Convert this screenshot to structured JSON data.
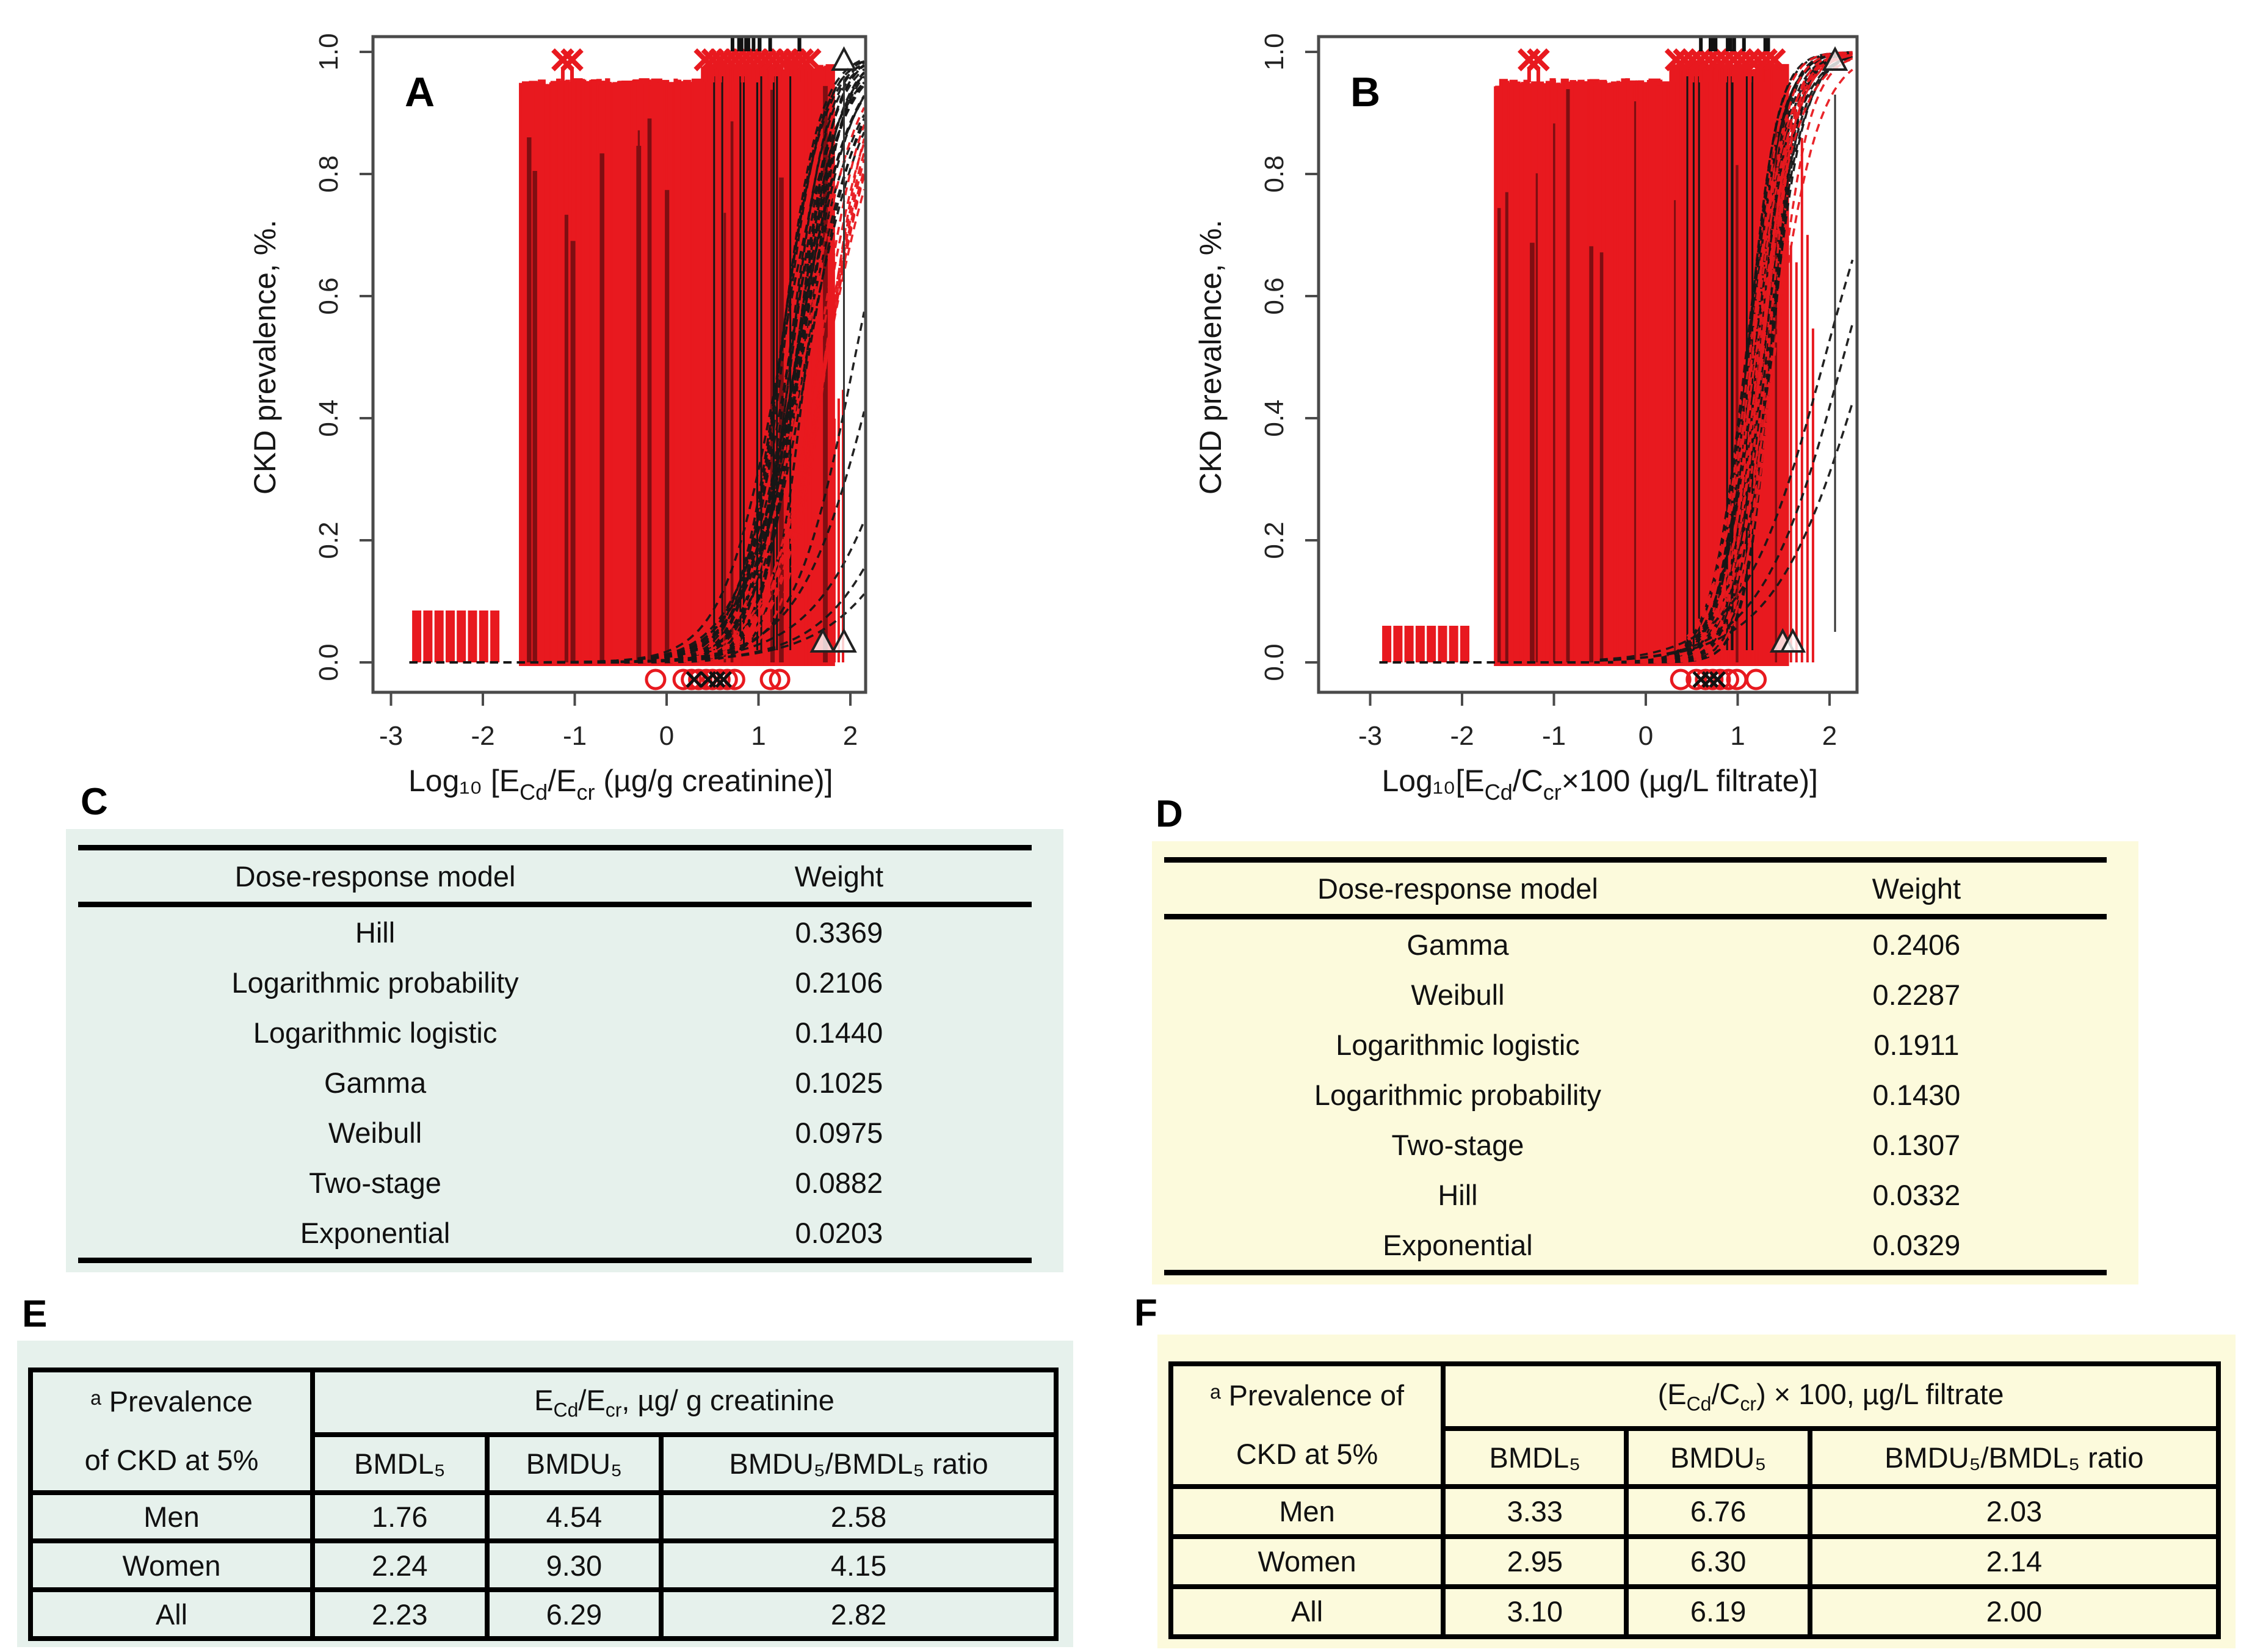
{
  "letters": {
    "c": "C",
    "d": "D",
    "e": "E",
    "f": "F"
  },
  "colors": {
    "red": "#e8191f",
    "dark_red": "#7f0e12",
    "green_bg": "#e6f1ec",
    "yellow_bg": "#fcfadc",
    "frame": "#4a4a4a",
    "ink": "#161616"
  },
  "chart_data": [
    {
      "type": "scatter",
      "panel": "A",
      "ylabel": "CKD prevalence, %.",
      "xlabel": "Log10 [ECd/Ecr (µg/g creatinine)]",
      "xlabel_segments": [
        {
          "t": "Log₁₀ [E"
        },
        {
          "t": "Cd",
          "sub": true
        },
        {
          "t": "/E"
        },
        {
          "t": "cr",
          "sub": true
        },
        {
          "t": " (µg/g creatinine)]"
        }
      ],
      "xticks": [
        "-3",
        "-2",
        "-1",
        "0",
        "1",
        "2"
      ],
      "yticks": [
        "0.0",
        "0.2",
        "0.4",
        "0.6",
        "0.8",
        "1.0"
      ],
      "xlim": [
        -3.2,
        2.2
      ],
      "ylim": [
        -0.05,
        1.03
      ],
      "grid": false,
      "legend": "none",
      "layout": {
        "frame": {
          "l": 311,
          "r": 1118,
          "t": 50,
          "b": 1124
        },
        "x0": 792,
        "xu": 150.5,
        "y0": 1075,
        "yu": 1000,
        "seed": 42
      },
      "ci_block": {
        "from": -1.55,
        "to": 1.78,
        "n": 170,
        "top": 0.95,
        "top_right": 0.975,
        "right_from": 0.42,
        "dark": 14
      },
      "black_lines": {
        "from": 0.45,
        "to": 1.35,
        "n": 10,
        "top": 0.96
      },
      "left_bars": {
        "from": -2.72,
        "to": -1.87,
        "n": 8,
        "top": 0.085
      },
      "sparse": {
        "from": 1.78,
        "to": 1.92,
        "n": 4,
        "top": 0.55
      },
      "curves": {
        "n": 24,
        "from": -2.8,
        "x50": [
          1.22,
          1.55
        ],
        "k": [
          3.0,
          5.5
        ]
      },
      "red_curves": {
        "n": 10,
        "from": -0.4,
        "x50": [
          1.45,
          1.75
        ],
        "k": [
          3.0,
          4.6
        ]
      },
      "shallow": [
        {
          "x50": 2.05,
          "k": 3.0
        },
        {
          "x50": 2.3,
          "k": 2.4
        },
        {
          "x50": 2.75,
          "k": 2.0
        },
        {
          "x50": 3.0,
          "k": 2.0
        },
        {
          "x50": 3.3,
          "k": 1.8
        }
      ],
      "top_x": {
        "singles": [
          -1.13,
          -1.03
        ],
        "from": 0.42,
        "to": 1.56,
        "n": 15
      },
      "top_dashes": {
        "from": 0.5,
        "to": 1.5,
        "n": 12
      },
      "circles": {
        "v": -0.028,
        "xs": [
          -0.12,
          0.18,
          0.27,
          0.35,
          0.43,
          0.5,
          0.58,
          0.66,
          0.74,
          1.13,
          1.23
        ]
      },
      "circle_x": [
        0.3,
        0.45,
        0.55,
        0.62
      ],
      "triangles": [
        {
          "x": 1.7,
          "v": 0.032
        },
        {
          "x": 1.93,
          "v": 0.032
        },
        {
          "x": 1.93,
          "v": 0.985
        }
      ],
      "vlines": [
        {
          "x": 1.93,
          "v0": 0.05,
          "v1": 0.955
        }
      ]
    },
    {
      "type": "scatter",
      "panel": "B",
      "ylabel": "CKD prevalence, %.",
      "xlabel": "Log10[ECd/Ccr×100 (µg/L filtrate)]",
      "xlabel_segments": [
        {
          "t": "Log₁₀[E"
        },
        {
          "t": "Cd",
          "sub": true
        },
        {
          "t": "/C"
        },
        {
          "t": "cr",
          "sub": true
        },
        {
          "t": "×100 (µg/L filtrate)]"
        }
      ],
      "xticks": [
        "-3",
        "-2",
        "-1",
        "0",
        "1",
        "2"
      ],
      "yticks": [
        "0.0",
        "0.2",
        "0.4",
        "0.6",
        "0.8",
        "1.0"
      ],
      "xlim": [
        -3.5,
        2.3
      ],
      "ylim": [
        -0.05,
        1.03
      ],
      "grid": false,
      "legend": "none",
      "layout": {
        "frame": {
          "l": 310,
          "r": 1192,
          "t": 50,
          "b": 1124
        },
        "x0": 846,
        "xu": 150.5,
        "y0": 1075,
        "yu": 1000,
        "seed": 77
      },
      "ci_block": {
        "from": -1.6,
        "to": 1.5,
        "n": 165,
        "top": 0.95,
        "top_right": 0.975,
        "right_from": 0.3,
        "dark": 12
      },
      "black_lines": {
        "from": 0.4,
        "to": 1.3,
        "n": 8,
        "top": 0.96
      },
      "left_bars": {
        "from": -2.82,
        "to": -1.97,
        "n": 8,
        "top": 0.06
      },
      "sparse": {
        "from": 1.52,
        "to": 1.82,
        "n": 6,
        "top": 0.88
      },
      "curves": {
        "n": 18,
        "from": -2.9,
        "x50": [
          1.08,
          1.38
        ],
        "k": [
          4.0,
          7.0
        ]
      },
      "red_curves": {
        "n": 12,
        "from": -0.5,
        "x50": [
          1.12,
          1.45
        ],
        "k": [
          4.0,
          7.0
        ]
      },
      "shallow": [
        {
          "x50": 1.95,
          "k": 2.2
        },
        {
          "x50": 2.15,
          "k": 2.2
        },
        {
          "x50": 2.4,
          "k": 2.0
        }
      ],
      "top_x": {
        "singles": [
          -1.27,
          -1.17
        ],
        "from": 0.33,
        "to": 1.4,
        "n": 13
      },
      "top_dashes": {
        "from": 0.4,
        "to": 1.35,
        "n": 10
      },
      "circles": {
        "v": -0.028,
        "xs": [
          0.38,
          0.55,
          0.65,
          0.73,
          0.81,
          0.9,
          0.99,
          1.2
        ]
      },
      "circle_x": [
        0.6,
        0.7,
        0.78
      ],
      "triangles": [
        {
          "x": 1.49,
          "v": 0.032
        },
        {
          "x": 1.6,
          "v": 0.032
        },
        {
          "x": 2.06,
          "v": 0.985
        }
      ],
      "vlines": [
        {
          "x": 2.06,
          "v0": 0.05,
          "v1": 0.93
        }
      ]
    }
  ],
  "table_c": {
    "col_model": "Dose-response model",
    "col_weight": "Weight",
    "rows": [
      {
        "model": "Hill",
        "weight": "0.3369"
      },
      {
        "model": "Logarithmic probability",
        "weight": "0.2106"
      },
      {
        "model": "Logarithmic logistic",
        "weight": "0.1440"
      },
      {
        "model": "Gamma",
        "weight": "0.1025"
      },
      {
        "model": "Weibull",
        "weight": "0.0975"
      },
      {
        "model": "Two-stage",
        "weight": "0.0882"
      },
      {
        "model": "Exponential",
        "weight": "0.0203"
      }
    ]
  },
  "table_d": {
    "col_model": "Dose-response model",
    "col_weight": "Weight",
    "rows": [
      {
        "model": "Gamma",
        "weight": "0.2406"
      },
      {
        "model": "Weibull",
        "weight": "0.2287"
      },
      {
        "model": "Logarithmic logistic",
        "weight": "0.1911"
      },
      {
        "model": "Logarithmic probability",
        "weight": "0.1430"
      },
      {
        "model": "Two-stage",
        "weight": "0.1307"
      },
      {
        "model": "Hill",
        "weight": "0.0332"
      },
      {
        "model": "Exponential",
        "weight": "0.0329"
      }
    ]
  },
  "table_e": {
    "corner_line1": "ᵃ Prevalence",
    "corner_line2": "of CKD at 5%",
    "span_header": "ECd/Ecr, µg/ g creatinine",
    "span_segments": [
      {
        "t": "E"
      },
      {
        "t": "Cd",
        "sub": true
      },
      {
        "t": "/E"
      },
      {
        "t": "cr",
        "sub": true
      },
      {
        "t": ", µg/ g creatinine"
      }
    ],
    "col_headers": [
      "BMDL₅",
      "BMDU₅",
      "BMDU₅/BMDL₅ ratio"
    ],
    "rows": [
      {
        "label": "Men",
        "bmdl": "1.76",
        "bmdu": "4.54",
        "ratio": "2.58"
      },
      {
        "label": "Women",
        "bmdl": "2.24",
        "bmdu": "9.30",
        "ratio": "4.15"
      },
      {
        "label": "All",
        "bmdl": "2.23",
        "bmdu": "6.29",
        "ratio": "2.82"
      }
    ]
  },
  "table_f": {
    "corner_line1": "ᵃ Prevalence of",
    "corner_line2": "CKD at 5%",
    "span_header": "(ECd/Ccr) × 100, µg/L filtrate",
    "span_segments": [
      {
        "t": "(E"
      },
      {
        "t": "Cd",
        "sub": true
      },
      {
        "t": "/C"
      },
      {
        "t": "cr",
        "sub": true
      },
      {
        "t": ") × 100, µg/L filtrate"
      }
    ],
    "col_headers": [
      "BMDL₅",
      "BMDU₅",
      "BMDU₅/BMDL₅ ratio"
    ],
    "rows": [
      {
        "label": "Men",
        "bmdl": "3.33",
        "bmdu": "6.76",
        "ratio": "2.03"
      },
      {
        "label": "Women",
        "bmdl": "2.95",
        "bmdu": "6.30",
        "ratio": "2.14"
      },
      {
        "label": "All",
        "bmdl": "3.10",
        "bmdu": "6.19",
        "ratio": "2.00"
      }
    ]
  }
}
